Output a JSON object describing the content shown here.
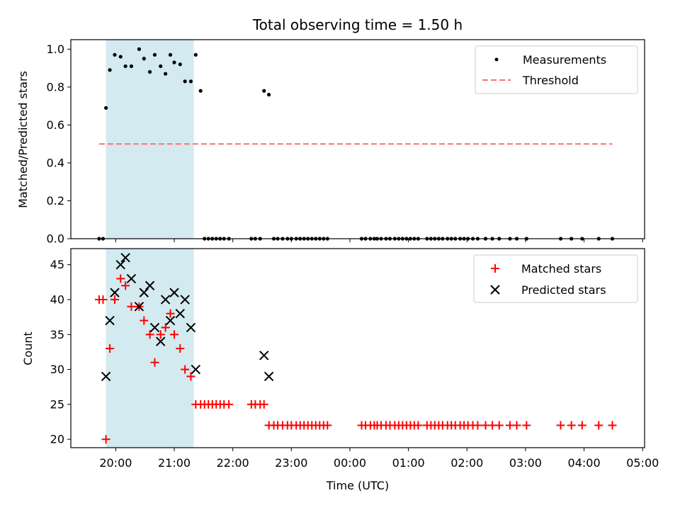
{
  "title": "Total observing time = 1.50 h",
  "xlabel": "Time (UTC)",
  "colors": {
    "measurement": "#000000",
    "threshold": "#ff7070",
    "matched": "#ff0000",
    "predicted": "#000000",
    "highlight": "#d3eaf0"
  },
  "chart_data": [
    {
      "type": "scatter",
      "ylabel": "Matched/Predicted stars",
      "ylim": [
        0,
        1.05
      ],
      "xlim": [
        "19:14",
        "05:02"
      ],
      "yticks": [
        "0.0",
        "0.2",
        "0.4",
        "0.6",
        "0.8",
        "1.0"
      ],
      "xticks": [
        "20:00",
        "21:00",
        "22:00",
        "23:00",
        "00:00",
        "01:00",
        "02:00",
        "03:00",
        "04:00",
        "05:00"
      ],
      "grid": false,
      "legend_position": "upper right",
      "highlight_span": [
        "19:50",
        "21:20"
      ],
      "series": [
        {
          "name": "Measurements",
          "marker": "dot",
          "x": [
            "19:43",
            "19:47",
            "19:50",
            "19:54",
            "19:59",
            "20:05",
            "20:10",
            "20:16",
            "20:24",
            "20:29",
            "20:35",
            "20:40",
            "20:46",
            "20:51",
            "20:56",
            "21:00",
            "21:06",
            "21:11",
            "21:17",
            "21:22",
            "21:27",
            "21:31",
            "21:35",
            "21:39",
            "21:43",
            "21:47",
            "21:51",
            "21:56",
            "22:19",
            "22:23",
            "22:28",
            "22:32",
            "22:37",
            "22:42",
            "22:46",
            "22:51",
            "22:56",
            "23:00",
            "23:05",
            "23:09",
            "23:13",
            "23:17",
            "23:21",
            "23:25",
            "23:29",
            "23:33",
            "23:37",
            "00:12",
            "00:16",
            "00:21",
            "00:25",
            "00:28",
            "00:32",
            "00:37",
            "00:41",
            "00:46",
            "00:50",
            "00:54",
            "00:58",
            "01:02",
            "01:06",
            "01:10",
            "01:19",
            "01:23",
            "01:27",
            "01:31",
            "01:35",
            "01:40",
            "01:44",
            "01:48",
            "01:53",
            "01:57",
            "02:01",
            "02:06",
            "02:11",
            "02:19",
            "02:26",
            "02:33",
            "02:44",
            "02:51",
            "03:01",
            "03:36",
            "03:47",
            "03:58",
            "04:15",
            "04:29"
          ],
          "y": [
            0,
            0,
            0.69,
            0.89,
            0.97,
            0.96,
            0.91,
            0.91,
            1.0,
            0.95,
            0.88,
            0.97,
            0.91,
            0.87,
            0.97,
            0.93,
            0.92,
            0.83,
            0.83,
            0.97,
            0.78,
            0,
            0,
            0,
            0,
            0,
            0,
            0,
            0,
            0,
            0,
            0.78,
            0.76,
            0,
            0,
            0,
            0,
            0,
            0,
            0,
            0,
            0,
            0,
            0,
            0,
            0,
            0,
            0,
            0,
            0,
            0,
            0,
            0,
            0,
            0,
            0,
            0,
            0,
            0,
            0,
            0,
            0,
            0,
            0,
            0,
            0,
            0,
            0,
            0,
            0,
            0,
            0,
            0,
            0,
            0,
            0,
            0,
            0,
            0,
            0,
            0,
            0,
            0,
            0,
            0,
            0
          ]
        },
        {
          "name": "Threshold",
          "line_style": "dashed",
          "x": [
            "19:43",
            "04:29"
          ],
          "y": [
            0.5,
            0.5
          ]
        }
      ]
    },
    {
      "type": "scatter",
      "ylabel": "Count",
      "ylim": [
        18.8,
        47.3
      ],
      "xlim": [
        "19:14",
        "05:02"
      ],
      "yticks": [
        "20",
        "25",
        "30",
        "35",
        "40",
        "45"
      ],
      "xticks": [
        "20:00",
        "21:00",
        "22:00",
        "23:00",
        "00:00",
        "01:00",
        "02:00",
        "03:00",
        "04:00",
        "05:00"
      ],
      "grid": false,
      "legend_position": "upper right",
      "highlight_span": [
        "19:50",
        "21:20"
      ],
      "series": [
        {
          "name": "Matched stars",
          "marker": "plus",
          "x": [
            "19:43",
            "19:47",
            "19:50",
            "19:54",
            "19:59",
            "20:05",
            "20:10",
            "20:16",
            "20:24",
            "20:29",
            "20:35",
            "20:40",
            "20:46",
            "20:51",
            "20:56",
            "21:00",
            "21:06",
            "21:11",
            "21:17",
            "21:22",
            "21:27",
            "21:31",
            "21:35",
            "21:39",
            "21:43",
            "21:47",
            "21:51",
            "21:56",
            "22:19",
            "22:23",
            "22:28",
            "22:32",
            "22:37",
            "22:42",
            "22:46",
            "22:51",
            "22:56",
            "23:00",
            "23:05",
            "23:09",
            "23:13",
            "23:17",
            "23:21",
            "23:25",
            "23:29",
            "23:33",
            "23:37",
            "00:12",
            "00:16",
            "00:21",
            "00:25",
            "00:28",
            "00:32",
            "00:37",
            "00:41",
            "00:46",
            "00:50",
            "00:54",
            "00:58",
            "01:02",
            "01:06",
            "01:10",
            "01:19",
            "01:23",
            "01:27",
            "01:31",
            "01:35",
            "01:40",
            "01:44",
            "01:48",
            "01:53",
            "01:57",
            "02:01",
            "02:06",
            "02:11",
            "02:19",
            "02:26",
            "02:33",
            "02:44",
            "02:51",
            "03:01",
            "03:36",
            "03:47",
            "03:58",
            "04:15",
            "04:29"
          ],
          "y": [
            40,
            40,
            20,
            33,
            40,
            43,
            42,
            39,
            39,
            37,
            35,
            31,
            35,
            36,
            38,
            35,
            33,
            30,
            29,
            25,
            25,
            25,
            25,
            25,
            25,
            25,
            25,
            25,
            25,
            25,
            25,
            25,
            22,
            22,
            22,
            22,
            22,
            22,
            22,
            22,
            22,
            22,
            22,
            22,
            22,
            22,
            22,
            22,
            22,
            22,
            22,
            22,
            22,
            22,
            22,
            22,
            22,
            22,
            22,
            22,
            22,
            22,
            22,
            22,
            22,
            22,
            22,
            22,
            22,
            22,
            22,
            22,
            22,
            22,
            22,
            22,
            22,
            22,
            22,
            22,
            22,
            22,
            22,
            22,
            22,
            22
          ]
        },
        {
          "name": "Predicted stars",
          "marker": "cross",
          "x": [
            "19:50",
            "19:54",
            "19:59",
            "20:05",
            "20:10",
            "20:16",
            "20:24",
            "20:29",
            "20:35",
            "20:40",
            "20:46",
            "20:51",
            "20:56",
            "21:00",
            "21:06",
            "21:11",
            "21:17",
            "21:22",
            "22:32",
            "22:37"
          ],
          "y": [
            29,
            37,
            41,
            45,
            46,
            43,
            39,
            41,
            42,
            36,
            34,
            40,
            37,
            41,
            38,
            40,
            36,
            30,
            32,
            29
          ]
        }
      ]
    }
  ]
}
